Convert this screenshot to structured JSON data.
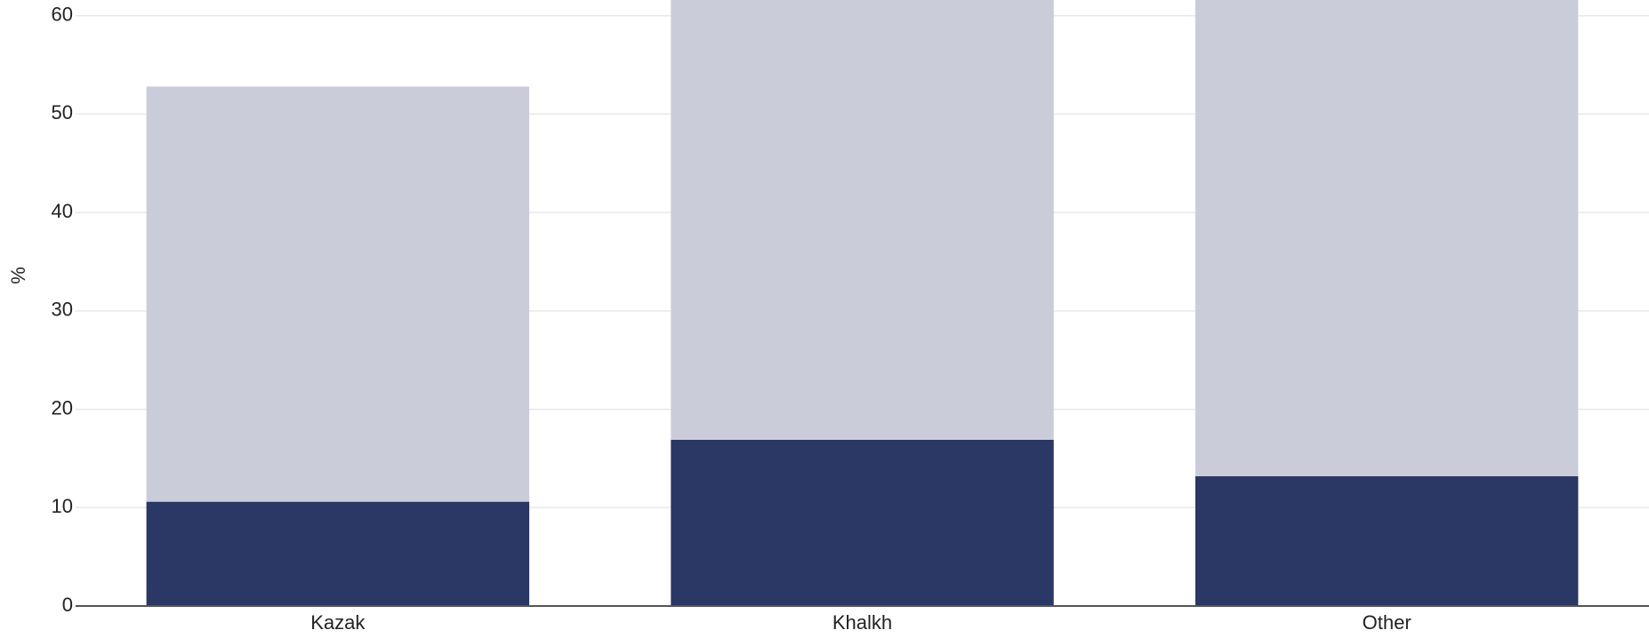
{
  "chart_data": {
    "type": "stacked_bar",
    "y_label": "%",
    "categories": [
      "Kazak",
      "Khalkh",
      "Other"
    ],
    "series": [
      {
        "color": "#2b3764",
        "values": [
          10.6,
          16.9,
          13.2
        ]
      },
      {
        "color": "#cacdd9",
        "values": [
          42.2,
          47.0,
          50.8
        ]
      }
    ],
    "ylim": [
      0,
      61.6
    ],
    "yticks": [
      0,
      10,
      20,
      30,
      40,
      50,
      60
    ],
    "grid": true
  }
}
